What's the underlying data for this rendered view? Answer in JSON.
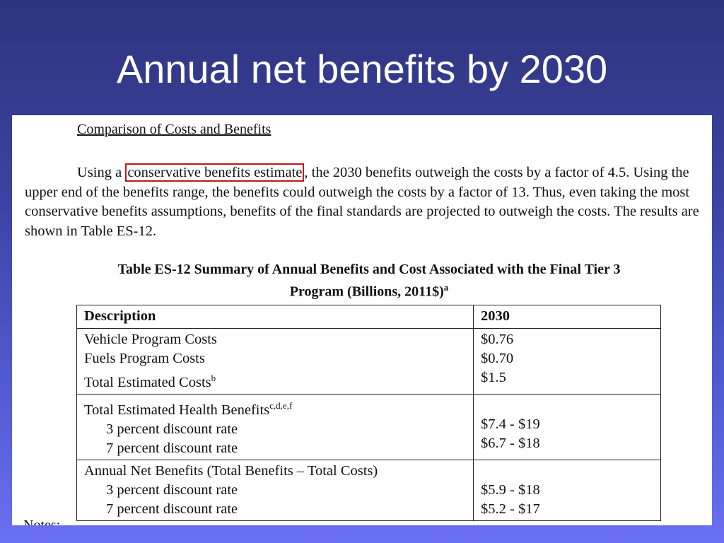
{
  "slide": {
    "title": "Annual net benefits by 2030"
  },
  "document": {
    "section_heading": "Comparison of Costs and Benefits",
    "paragraph": {
      "before": "Using a ",
      "highlight": "conservative benefits estimate",
      "after": ", the 2030 benefits outweigh the costs by a factor of 4.5.  Using the upper end of the benefits range, the benefits could outweigh the costs by a factor of 13.  Thus, even taking the most conservative benefits assumptions, benefits of the final standards are projected to outweigh the costs.  The results are shown in Table ES-12."
    },
    "table_caption": {
      "line1": "Table ES-12  Summary of Annual Benefits and Cost Associated with the Final Tier 3",
      "line2": "Program (Billions, 2011$)",
      "sup": "a"
    },
    "table": {
      "headers": [
        "Description",
        "2030"
      ],
      "groups": [
        {
          "rows": [
            {
              "label": "Vehicle Program Costs",
              "value": "$0.76"
            },
            {
              "label": "Fuels Program Costs",
              "value": "$0.70"
            },
            {
              "label": "Total Estimated Costs",
              "sup": "b",
              "value": "$1.5"
            }
          ]
        },
        {
          "heading": "Total Estimated Health Benefits",
          "heading_sup": "c,d,e,f",
          "rows": [
            {
              "label": "3 percent discount rate",
              "value": "$7.4 - $19"
            },
            {
              "label": "7 percent discount rate",
              "value": "$6.7 - $18"
            }
          ]
        },
        {
          "heading": "Annual Net Benefits (Total Benefits – Total Costs)",
          "rows": [
            {
              "label": "3 percent discount rate",
              "value": "$5.9 - $18"
            },
            {
              "label": "7 percent discount rate",
              "value": "$5.2 - $17"
            }
          ]
        }
      ]
    },
    "notes_label": "Notes:"
  }
}
